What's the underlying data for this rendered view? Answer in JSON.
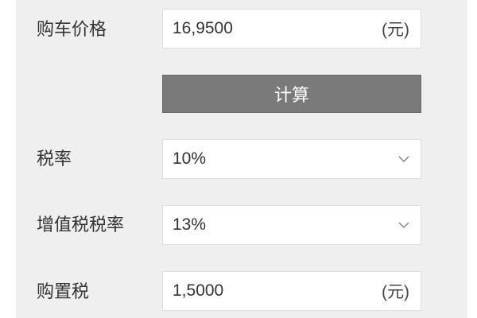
{
  "rows": {
    "price": {
      "label": "购车价格",
      "value": "16,9500",
      "unit": "(元)"
    },
    "calculate_label": "计算",
    "tax_rate": {
      "label": "税率",
      "value": "10%"
    },
    "vat_rate": {
      "label": "增值税税率",
      "value": "13%"
    },
    "purchase_tax": {
      "label": "购置税",
      "value": "1,5000",
      "unit": "(元)"
    }
  },
  "icons": {
    "select": "chevron-down-icon"
  },
  "colors": {
    "panel": "#efefef",
    "button": "#7a7a7a"
  }
}
